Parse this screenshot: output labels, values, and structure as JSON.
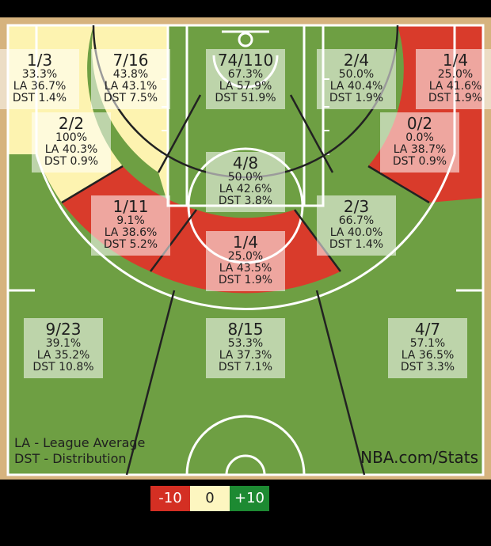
{
  "colors": {
    "below": "#d93b2b",
    "near": "#fdf3b0",
    "above": "#2e9b3e",
    "court": "#6e9f43",
    "wood": "#d6b37e"
  },
  "chart_data": {
    "type": "shot-chart",
    "zones": [
      {
        "id": "lc3",
        "shots": "1/3",
        "fg_pct": "33.3%",
        "la": "LA 36.7%",
        "dst": "DST 1.4%",
        "rating": "near"
      },
      {
        "id": "l-wing-mid-top",
        "shots": "7/16",
        "fg_pct": "43.8%",
        "la": "LA 43.1%",
        "dst": "DST 7.5%",
        "rating": "near"
      },
      {
        "id": "restricted",
        "shots": "74/110",
        "fg_pct": "67.3%",
        "la": "LA 57.9%",
        "dst": "DST 51.9%",
        "rating": "above"
      },
      {
        "id": "r-wing-mid-top",
        "shots": "2/4",
        "fg_pct": "50.0%",
        "la": "LA 40.4%",
        "dst": "DST 1.9%",
        "rating": "above"
      },
      {
        "id": "rc3",
        "shots": "1/4",
        "fg_pct": "25.0%",
        "la": "LA 41.6%",
        "dst": "DST 1.9%",
        "rating": "below"
      },
      {
        "id": "l-baseline-mid",
        "shots": "2/2",
        "fg_pct": "100%",
        "la": "LA 40.3%",
        "dst": "DST 0.9%",
        "rating": "near"
      },
      {
        "id": "r-baseline-mid",
        "shots": "0/2",
        "fg_pct": "0.0%",
        "la": "LA 38.7%",
        "dst": "DST 0.9%",
        "rating": "below"
      },
      {
        "id": "paint-non-ra",
        "shots": "4/8",
        "fg_pct": "50.0%",
        "la": "LA 42.6%",
        "dst": "DST 3.8%",
        "rating": "above"
      },
      {
        "id": "l-wing-mid",
        "shots": "1/11",
        "fg_pct": "9.1%",
        "la": "LA 38.6%",
        "dst": "DST 5.2%",
        "rating": "below"
      },
      {
        "id": "r-wing-mid",
        "shots": "2/3",
        "fg_pct": "66.7%",
        "la": "LA 40.0%",
        "dst": "DST 1.4%",
        "rating": "above"
      },
      {
        "id": "top-key-mid",
        "shots": "1/4",
        "fg_pct": "25.0%",
        "la": "LA 43.5%",
        "dst": "DST 1.9%",
        "rating": "below"
      },
      {
        "id": "l-wing-3",
        "shots": "9/23",
        "fg_pct": "39.1%",
        "la": "LA 35.2%",
        "dst": "DST 10.8%",
        "rating": "above"
      },
      {
        "id": "top-3",
        "shots": "8/15",
        "fg_pct": "53.3%",
        "la": "LA 37.3%",
        "dst": "DST 7.1%",
        "rating": "above"
      },
      {
        "id": "r-wing-3",
        "shots": "4/7",
        "fg_pct": "57.1%",
        "la": "LA 36.5%",
        "dst": "DST 3.3%",
        "rating": "above"
      }
    ],
    "legend": [
      {
        "label": "-10",
        "rating": "below"
      },
      {
        "label": "0",
        "rating": "near"
      },
      {
        "label": "+10",
        "rating": "above"
      }
    ]
  },
  "notes": {
    "la": "LA - League Average",
    "dst": "DST - Distribution"
  },
  "brand": "NBA.com/Stats"
}
